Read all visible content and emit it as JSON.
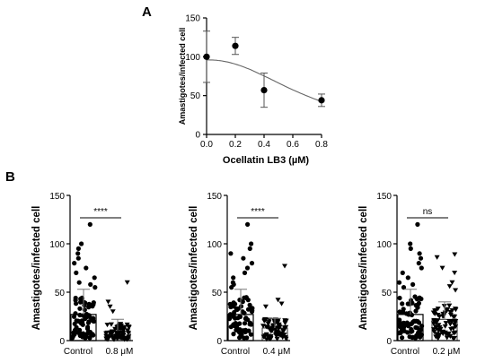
{
  "panels": {
    "a": "A",
    "b": "B"
  },
  "chart_data": [
    {
      "type": "scatter",
      "panel": "A",
      "xlabel": "Ocellatin LB3 (µM)",
      "ylabel": "Amastigotes/infected cell",
      "xlim": [
        0,
        0.8
      ],
      "ylim": [
        0,
        150
      ],
      "xticks": [
        "0.0",
        "0.2",
        "0.4",
        "0.6",
        "0.8"
      ],
      "yticks": [
        "0",
        "50",
        "100",
        "150"
      ],
      "points": [
        {
          "x": 0.0,
          "y": 100,
          "err": 33
        },
        {
          "x": 0.2,
          "y": 114,
          "err": 11
        },
        {
          "x": 0.4,
          "y": 57,
          "err": 22
        },
        {
          "x": 0.8,
          "y": 44,
          "err": 8
        }
      ],
      "fit_curve": {
        "top": 96,
        "ic50": 0.72,
        "hill": 2.2
      }
    },
    {
      "type": "bar",
      "panel": "B",
      "ylabel": "Amastigotes/infected cell",
      "ylim": [
        0,
        150
      ],
      "yticks": [
        "0",
        "50",
        "100",
        "150"
      ],
      "categories": [
        "Control",
        "0.8 μM"
      ],
      "values": [
        27,
        10
      ],
      "sd": [
        26,
        12
      ],
      "significance": "****",
      "outliers": [
        [
          120,
          100,
          95,
          90,
          85,
          80,
          75,
          70,
          65,
          60,
          58,
          55
        ],
        [
          60,
          40,
          35,
          30
        ]
      ]
    },
    {
      "type": "bar",
      "panel": "B",
      "ylabel": "Amastigotes/infected cell",
      "ylim": [
        0,
        150
      ],
      "yticks": [
        "0",
        "50",
        "100",
        "150"
      ],
      "categories": [
        "Control",
        "0.4 μM"
      ],
      "values": [
        27,
        13
      ],
      "sd": [
        26,
        10
      ],
      "significance": "****",
      "outliers": [
        [
          120,
          100,
          95,
          90,
          85,
          80,
          75,
          70,
          65,
          60,
          58,
          55
        ],
        [
          77,
          42,
          38,
          35
        ]
      ]
    },
    {
      "type": "bar",
      "panel": "B",
      "ylabel": "Amastigotes/infected cell",
      "ylim": [
        0,
        150
      ],
      "yticks": [
        "0",
        "50",
        "100",
        "150"
      ],
      "categories": [
        "Control",
        "0.2 μM"
      ],
      "values": [
        27,
        22
      ],
      "sd": [
        26,
        18
      ],
      "significance": "ns",
      "outliers": [
        [
          120,
          100,
          95,
          90,
          85,
          80,
          75,
          70,
          65,
          60,
          58,
          55
        ],
        [
          89,
          86,
          75,
          70,
          60,
          56,
          52
        ]
      ]
    }
  ]
}
